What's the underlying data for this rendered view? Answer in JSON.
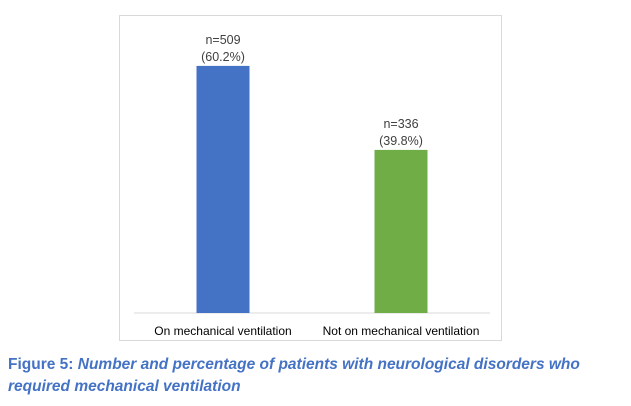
{
  "chart_data": {
    "type": "bar",
    "categories": [
      "On mechanical ventilation",
      "Not on mechanical ventilation"
    ],
    "values": [
      509,
      336
    ],
    "percentages": [
      60.2,
      39.8
    ],
    "data_labels": [
      [
        "n=509",
        "(60.2%)"
      ],
      [
        "n=336",
        "(39.8%)"
      ]
    ],
    "colors": [
      "#4472c4",
      "#70ad47"
    ],
    "ylim": [
      0,
      550
    ],
    "grid": false,
    "legend": false,
    "title": "",
    "xlabel": "",
    "ylabel": ""
  },
  "caption": {
    "lead": "Figure 5: ",
    "text": "Number and percentage of patients with neurological disorders who required mechanical ventilation"
  }
}
